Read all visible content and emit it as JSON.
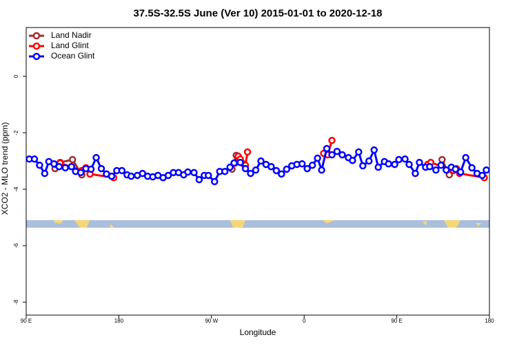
{
  "chart_data": {
    "type": "line",
    "title": "37.5S-32.5S June (Ver 10)   2015-01-01 to 2020-12-18",
    "xlabel": "Longitude",
    "ylabel": "XCO2 - MLO trend (ppm)",
    "xlim": [
      90,
      540
    ],
    "xticks": [
      {
        "value": 90,
        "label": "90 E"
      },
      180,
      {
        "value": 270,
        "label": "90 W"
      },
      {
        "value": 360,
        "label": "0"
      },
      {
        "value": 450,
        "label": "90 E"
      },
      {
        "value": 540,
        "label": "180"
      }
    ],
    "ylim": [
      -8.46,
      1.73
    ],
    "yticks": [
      0,
      -2,
      -4,
      -6,
      -8
    ],
    "legend": "top-left",
    "series": [
      {
        "name": "Land Nadir",
        "color": "#a52a2a",
        "x": [
          118,
          123,
          135,
          144,
          null,
          290,
          294,
          null,
          494,
          501
        ],
        "values": [
          -3.27,
          -3.05,
          -2.95,
          -3.49,
          null,
          -3.29,
          -2.8,
          null,
          -2.95,
          -3.49
        ]
      },
      {
        "name": "Land Glint",
        "color": "#ff0000",
        "x": [
          118,
          123,
          144,
          148,
          152,
          175,
          null,
          293,
          296,
          298,
          301,
          303,
          305,
          null,
          379,
          383,
          387,
          null,
          480,
          483,
          505,
          508,
          511,
          535
        ],
        "values": [
          -3.12,
          -3.07,
          -3.34,
          -3.24,
          -3.46,
          -3.59,
          null,
          -3.07,
          -2.83,
          -2.93,
          -3.1,
          -3.15,
          -2.68,
          null,
          -2.73,
          -2.78,
          -2.27,
          null,
          -3.12,
          -3.05,
          -3.34,
          -3.27,
          -3.44,
          -3.59
        ]
      },
      {
        "name": "Ocean Glint",
        "color": "#0000ff",
        "x": [
          93,
          98,
          103,
          108,
          112,
          117,
          122,
          128,
          134,
          138,
          143,
          148,
          153,
          158,
          163,
          168,
          173,
          178,
          183,
          188,
          192,
          198,
          203,
          208,
          213,
          218,
          223,
          228,
          233,
          238,
          243,
          247,
          253,
          258,
          263,
          267,
          273,
          278,
          283,
          288,
          292,
          298,
          303,
          308,
          313,
          318,
          323,
          328,
          333,
          338,
          343,
          348,
          353,
          358,
          363,
          368,
          373,
          377,
          382,
          387,
          392,
          397,
          403,
          407,
          413,
          417,
          423,
          428,
          432,
          438,
          442,
          448,
          452,
          458,
          462,
          468,
          472,
          478,
          482,
          488,
          493,
          498,
          503,
          507,
          512,
          517,
          523,
          528,
          533,
          537
        ],
        "values": [
          -2.93,
          -2.93,
          -3.15,
          -3.44,
          -3.02,
          -3.1,
          -3.2,
          -3.24,
          -3.2,
          -3.37,
          -3.41,
          -3.27,
          -3.29,
          -2.88,
          -3.27,
          -3.46,
          -3.54,
          -3.34,
          -3.34,
          -3.49,
          -3.54,
          -3.51,
          -3.44,
          -3.54,
          -3.56,
          -3.51,
          -3.59,
          -3.51,
          -3.41,
          -3.41,
          -3.49,
          -3.39,
          -3.41,
          -3.66,
          -3.51,
          -3.51,
          -3.73,
          -3.37,
          -3.37,
          -3.22,
          -3.07,
          -3.05,
          -3.27,
          -3.44,
          -3.32,
          -3.0,
          -3.12,
          -3.2,
          -3.34,
          -3.46,
          -3.29,
          -3.17,
          -3.12,
          -3.1,
          -3.27,
          -3.15,
          -2.9,
          -3.32,
          -2.56,
          -2.78,
          -2.66,
          -2.78,
          -2.88,
          -2.98,
          -2.68,
          -3.17,
          -3.0,
          -2.61,
          -3.22,
          -3.02,
          -3.1,
          -3.12,
          -2.95,
          -2.93,
          -3.12,
          -3.44,
          -3.05,
          -3.22,
          -3.2,
          -3.32,
          -3.15,
          -3.32,
          -3.22,
          -3.29,
          -3.39,
          -2.88,
          -3.24,
          -3.44,
          -3.51,
          -3.32
        ]
      }
    ]
  }
}
